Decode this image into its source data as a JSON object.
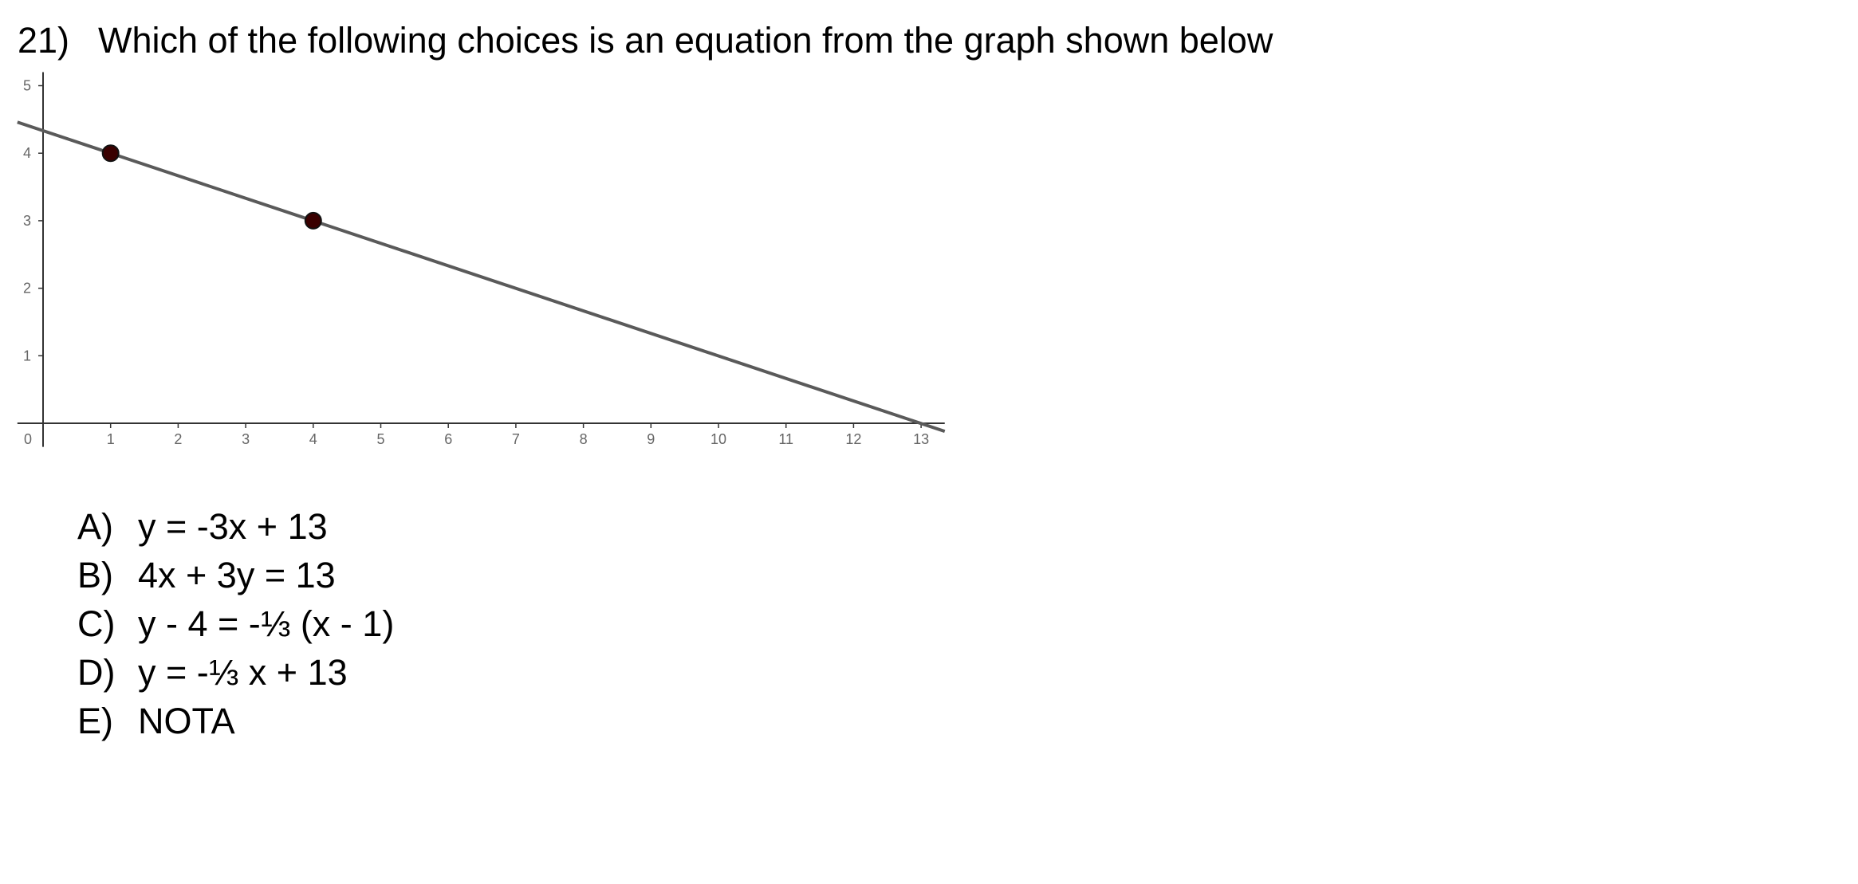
{
  "question": {
    "number": "21)",
    "text": "Which of the following choices is an equation from the graph shown below"
  },
  "chart_data": {
    "type": "line",
    "title": "",
    "xlabel": "",
    "ylabel": "",
    "xlim": [
      -0.38,
      13.35
    ],
    "ylim": [
      -0.35,
      5.2
    ],
    "x_ticks": [
      0,
      1,
      2,
      3,
      4,
      5,
      6,
      7,
      8,
      9,
      10,
      11,
      12,
      13
    ],
    "y_ticks": [
      1,
      2,
      3,
      4,
      5
    ],
    "grid": false,
    "line": {
      "x": [
        -0.38,
        13.35
      ],
      "y": [
        4.46,
        -0.12
      ]
    },
    "points": [
      {
        "x": 1,
        "y": 4
      },
      {
        "x": 4,
        "y": 3
      }
    ],
    "colors": {
      "axis": "#333333",
      "line": "#5a5a5a",
      "point_fill": "#3a0000",
      "point_stroke": "#111111",
      "tick_label": "#666666"
    }
  },
  "choices": [
    {
      "letter": "A)",
      "text": "y = -3x + 13"
    },
    {
      "letter": "B)",
      "text": "4x + 3y = 13"
    },
    {
      "letter": "C)",
      "text": "y - 4 = -⅓ (x - 1)"
    },
    {
      "letter": "D)",
      "text": "y = -⅓ x + 13"
    },
    {
      "letter": "E)",
      "text": "NOTA"
    }
  ]
}
